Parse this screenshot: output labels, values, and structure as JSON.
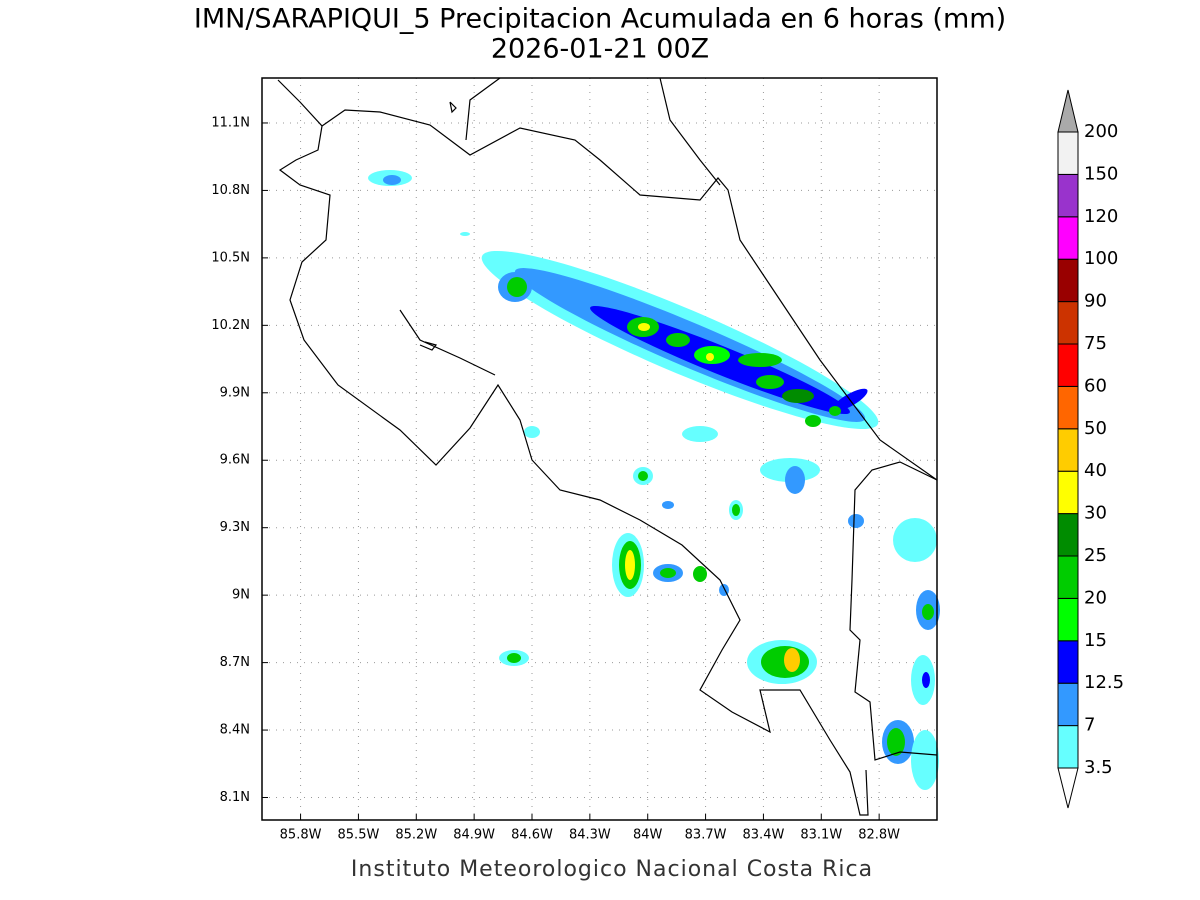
{
  "chart_data": {
    "type": "contour-map",
    "title": "IMN/SARAPIQUI_5 Precipitacion Acumulada en 6 horas (mm)",
    "subtitle": "2026-01-21 00Z",
    "footer": "Instituto Meteorologico Nacional Costa Rica",
    "xlim": [
      -86.0,
      -82.5
    ],
    "ylim": [
      8.0,
      11.3
    ],
    "xticks": [
      {
        "value": -85.8,
        "label": "85.8W"
      },
      {
        "value": -85.5,
        "label": "85.5W"
      },
      {
        "value": -85.2,
        "label": "85.2W"
      },
      {
        "value": -84.9,
        "label": "84.9W"
      },
      {
        "value": -84.6,
        "label": "84.6W"
      },
      {
        "value": -84.3,
        "label": "84.3W"
      },
      {
        "value": -84.0,
        "label": "84W"
      },
      {
        "value": -83.7,
        "label": "83.7W"
      },
      {
        "value": -83.4,
        "label": "83.4W"
      },
      {
        "value": -83.1,
        "label": "83.1W"
      },
      {
        "value": -82.8,
        "label": "82.8W"
      }
    ],
    "yticks": [
      {
        "value": 8.1,
        "label": "8.1N"
      },
      {
        "value": 8.4,
        "label": "8.4N"
      },
      {
        "value": 8.7,
        "label": "8.7N"
      },
      {
        "value": 9.0,
        "label": "9N"
      },
      {
        "value": 9.3,
        "label": "9.3N"
      },
      {
        "value": 9.6,
        "label": "9.6N"
      },
      {
        "value": 9.9,
        "label": "9.9N"
      },
      {
        "value": 10.2,
        "label": "10.2N"
      },
      {
        "value": 10.5,
        "label": "10.5N"
      },
      {
        "value": 10.8,
        "label": "10.8N"
      },
      {
        "value": 11.1,
        "label": "11.1N"
      }
    ],
    "grid": true,
    "colorbar": {
      "levels": [
        3.5,
        7,
        12.5,
        15,
        20,
        25,
        30,
        40,
        50,
        60,
        75,
        90,
        100,
        120,
        150,
        200
      ],
      "colors": [
        "#66ffff",
        "#3399ff",
        "#0000ff",
        "#00ff00",
        "#00cc00",
        "#008c00",
        "#ffff00",
        "#ffcc00",
        "#ff6600",
        "#ff0000",
        "#cc3300",
        "#990000",
        "#ff00ff",
        "#9933cc",
        "#f2f2f2"
      ],
      "under_color": "#ffffff",
      "over_color": "#aaaaaa"
    }
  }
}
